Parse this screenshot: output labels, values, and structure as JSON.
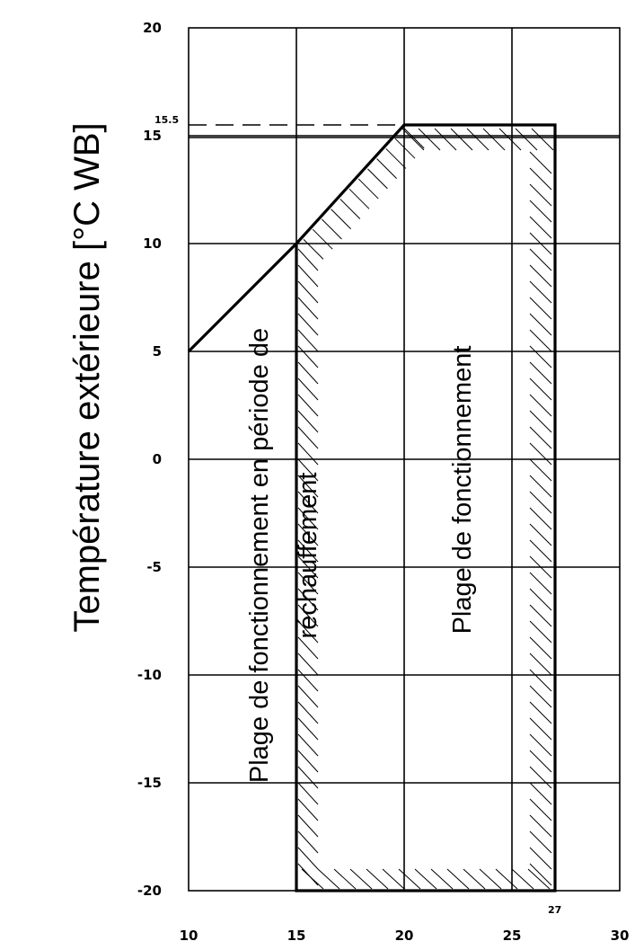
{
  "chart_data": {
    "type": "area",
    "title": "",
    "xlabel": "",
    "ylabel": "Température extérieure [°C WB]",
    "xlim": [
      10,
      30
    ],
    "ylim": [
      -20,
      20
    ],
    "x_ticks": [
      "10",
      "15",
      "20",
      "25",
      "30"
    ],
    "y_ticks": [
      "20",
      "15",
      "10",
      "5",
      "0",
      "-5",
      "-10",
      "-15",
      "-20"
    ],
    "grid": true,
    "operating_envelope": [
      {
        "x": 10,
        "y": 5
      },
      {
        "x": 15,
        "y": 10
      },
      {
        "x": 20,
        "y": 15.5
      },
      {
        "x": 27,
        "y": 15.5
      },
      {
        "x": 27,
        "y": -20
      },
      {
        "x": 15,
        "y": -20
      }
    ],
    "heating_region": [
      {
        "x": 10,
        "y": 5
      },
      {
        "x": 15,
        "y": 10
      },
      {
        "x": 15,
        "y": -20
      },
      {
        "x": 10,
        "y": -20
      }
    ],
    "dashed_reference": {
      "y": 15.5,
      "x_from": 10,
      "x_to": 20
    },
    "annotations": [
      {
        "text": "15.5",
        "x": 10,
        "y": 15.5
      },
      {
        "text": "27",
        "x": 27,
        "y": -20
      }
    ],
    "regions": [
      {
        "name": "Plage de fonctionnement en période de",
        "line2": "réchauffement"
      },
      {
        "name": "Plage de fonctionnement"
      }
    ]
  }
}
